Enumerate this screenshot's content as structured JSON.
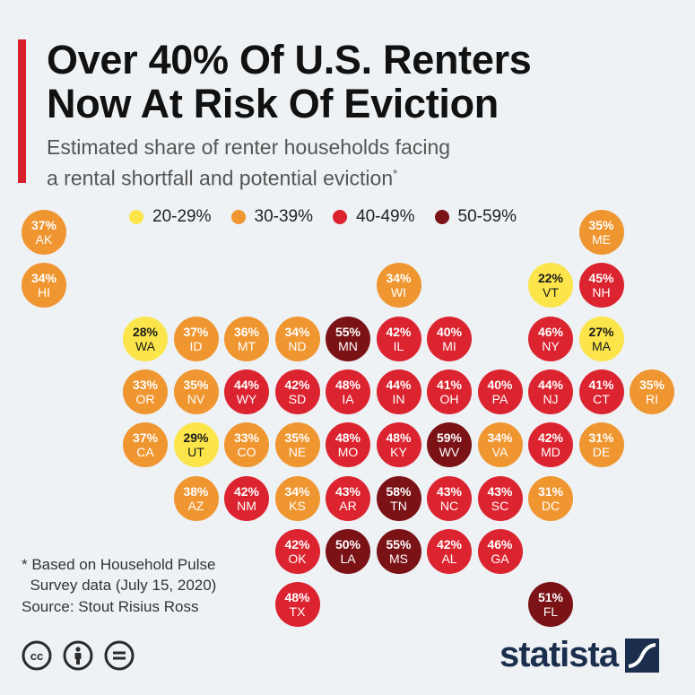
{
  "title": "Over 40% Of U.S. Renters\nNow At Risk Of Eviction",
  "subtitle": "Estimated share of renter households facing\na rental shortfall and potential eviction",
  "subtitle_marker": "*",
  "legend": [
    {
      "label": "20-29%",
      "color": "#fbe54b"
    },
    {
      "label": "30-39%",
      "color": "#ef9630"
    },
    {
      "label": "40-49%",
      "color": "#dc2430"
    },
    {
      "label": "50-59%",
      "color": "#7a1216"
    }
  ],
  "states": [
    {
      "abbr": "AK",
      "value": "37%",
      "range": 1,
      "row": 0,
      "col": 0
    },
    {
      "abbr": "ME",
      "value": "35%",
      "range": 1,
      "row": 0,
      "col": 11
    },
    {
      "abbr": "HI",
      "value": "34%",
      "range": 1,
      "row": 1,
      "col": 0
    },
    {
      "abbr": "WI",
      "value": "34%",
      "range": 1,
      "row": 1,
      "col": 7
    },
    {
      "abbr": "VT",
      "value": "22%",
      "range": 0,
      "row": 1,
      "col": 10
    },
    {
      "abbr": "NH",
      "value": "45%",
      "range": 2,
      "row": 1,
      "col": 11
    },
    {
      "abbr": "WA",
      "value": "28%",
      "range": 0,
      "row": 2,
      "col": 2
    },
    {
      "abbr": "ID",
      "value": "37%",
      "range": 1,
      "row": 2,
      "col": 3
    },
    {
      "abbr": "MT",
      "value": "36%",
      "range": 1,
      "row": 2,
      "col": 4
    },
    {
      "abbr": "ND",
      "value": "34%",
      "range": 1,
      "row": 2,
      "col": 5
    },
    {
      "abbr": "MN",
      "value": "55%",
      "range": 3,
      "row": 2,
      "col": 6
    },
    {
      "abbr": "IL",
      "value": "42%",
      "range": 2,
      "row": 2,
      "col": 7
    },
    {
      "abbr": "MI",
      "value": "40%",
      "range": 2,
      "row": 2,
      "col": 8
    },
    {
      "abbr": "NY",
      "value": "46%",
      "range": 2,
      "row": 2,
      "col": 10
    },
    {
      "abbr": "MA",
      "value": "27%",
      "range": 0,
      "row": 2,
      "col": 11
    },
    {
      "abbr": "OR",
      "value": "33%",
      "range": 1,
      "row": 3,
      "col": 2
    },
    {
      "abbr": "NV",
      "value": "35%",
      "range": 1,
      "row": 3,
      "col": 3
    },
    {
      "abbr": "WY",
      "value": "44%",
      "range": 2,
      "row": 3,
      "col": 4
    },
    {
      "abbr": "SD",
      "value": "42%",
      "range": 2,
      "row": 3,
      "col": 5
    },
    {
      "abbr": "IA",
      "value": "48%",
      "range": 2,
      "row": 3,
      "col": 6
    },
    {
      "abbr": "IN",
      "value": "44%",
      "range": 2,
      "row": 3,
      "col": 7
    },
    {
      "abbr": "OH",
      "value": "41%",
      "range": 2,
      "row": 3,
      "col": 8
    },
    {
      "abbr": "PA",
      "value": "40%",
      "range": 2,
      "row": 3,
      "col": 9
    },
    {
      "abbr": "NJ",
      "value": "44%",
      "range": 2,
      "row": 3,
      "col": 10
    },
    {
      "abbr": "CT",
      "value": "41%",
      "range": 2,
      "row": 3,
      "col": 11
    },
    {
      "abbr": "RI",
      "value": "35%",
      "range": 1,
      "row": 3,
      "col": 12
    },
    {
      "abbr": "CA",
      "value": "37%",
      "range": 1,
      "row": 4,
      "col": 2
    },
    {
      "abbr": "UT",
      "value": "29%",
      "range": 0,
      "row": 4,
      "col": 3
    },
    {
      "abbr": "CO",
      "value": "33%",
      "range": 1,
      "row": 4,
      "col": 4
    },
    {
      "abbr": "NE",
      "value": "35%",
      "range": 1,
      "row": 4,
      "col": 5
    },
    {
      "abbr": "MO",
      "value": "48%",
      "range": 2,
      "row": 4,
      "col": 6
    },
    {
      "abbr": "KY",
      "value": "48%",
      "range": 2,
      "row": 4,
      "col": 7
    },
    {
      "abbr": "WV",
      "value": "59%",
      "range": 3,
      "row": 4,
      "col": 8
    },
    {
      "abbr": "VA",
      "value": "34%",
      "range": 1,
      "row": 4,
      "col": 9
    },
    {
      "abbr": "MD",
      "value": "42%",
      "range": 2,
      "row": 4,
      "col": 10
    },
    {
      "abbr": "DE",
      "value": "31%",
      "range": 1,
      "row": 4,
      "col": 11
    },
    {
      "abbr": "AZ",
      "value": "38%",
      "range": 1,
      "row": 5,
      "col": 3
    },
    {
      "abbr": "NM",
      "value": "42%",
      "range": 2,
      "row": 5,
      "col": 4
    },
    {
      "abbr": "KS",
      "value": "34%",
      "range": 1,
      "row": 5,
      "col": 5
    },
    {
      "abbr": "AR",
      "value": "43%",
      "range": 2,
      "row": 5,
      "col": 6
    },
    {
      "abbr": "TN",
      "value": "58%",
      "range": 3,
      "row": 5,
      "col": 7
    },
    {
      "abbr": "NC",
      "value": "43%",
      "range": 2,
      "row": 5,
      "col": 8
    },
    {
      "abbr": "SC",
      "value": "43%",
      "range": 2,
      "row": 5,
      "col": 9
    },
    {
      "abbr": "DC",
      "value": "31%",
      "range": 1,
      "row": 5,
      "col": 10
    },
    {
      "abbr": "OK",
      "value": "42%",
      "range": 2,
      "row": 6,
      "col": 5
    },
    {
      "abbr": "LA",
      "value": "50%",
      "range": 3,
      "row": 6,
      "col": 6
    },
    {
      "abbr": "MS",
      "value": "55%",
      "range": 3,
      "row": 6,
      "col": 7
    },
    {
      "abbr": "AL",
      "value": "42%",
      "range": 2,
      "row": 6,
      "col": 8
    },
    {
      "abbr": "GA",
      "value": "46%",
      "range": 2,
      "row": 6,
      "col": 9
    },
    {
      "abbr": "TX",
      "value": "48%",
      "range": 2,
      "row": 7,
      "col": 5
    },
    {
      "abbr": "FL",
      "value": "51%",
      "range": 3,
      "row": 7,
      "col": 10
    }
  ],
  "footnote": "* Based on Household Pulse\n  Survey data (July 15, 2020)",
  "source": "Source: Stout Risius Ross",
  "brand": "statista",
  "license_icons": [
    "cc-icon",
    "attribution-icon",
    "no-derivatives-icon"
  ]
}
